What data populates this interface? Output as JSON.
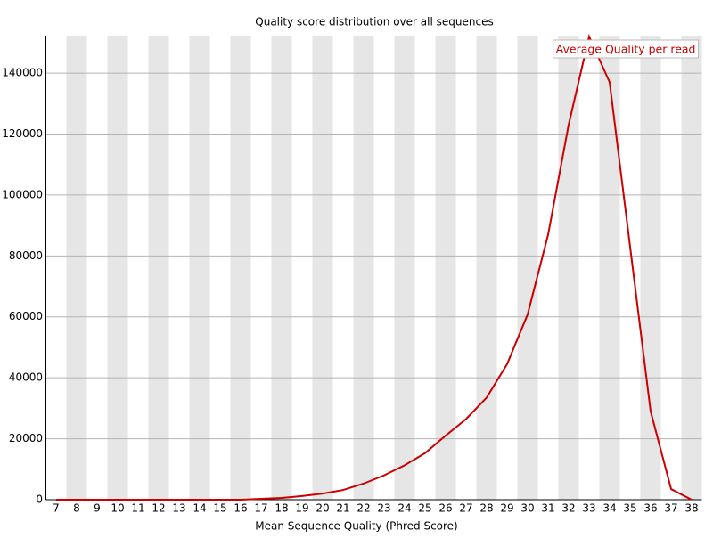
{
  "chart_data": {
    "type": "line",
    "title": "Quality score distribution over all sequences",
    "xlabel": "Mean Sequence Quality (Phred Score)",
    "categories": [
      7,
      8,
      9,
      10,
      11,
      12,
      13,
      14,
      15,
      16,
      17,
      18,
      19,
      20,
      21,
      22,
      23,
      24,
      25,
      26,
      27,
      28,
      29,
      30,
      31,
      32,
      33,
      34,
      35,
      36,
      37,
      38
    ],
    "series": [
      {
        "name": "Average Quality per read",
        "color": "#cc0000",
        "values": [
          0,
          0,
          0,
          0,
          0,
          0,
          0,
          0,
          0,
          0,
          300,
          600,
          1200,
          2000,
          3200,
          5300,
          8000,
          11300,
          15300,
          21000,
          26500,
          33500,
          44500,
          60800,
          87000,
          123000,
          152000,
          137000,
          83000,
          29000,
          3500,
          0
        ]
      }
    ],
    "ylim": [
      0,
      152300
    ],
    "yticks": [
      0,
      20000,
      40000,
      60000,
      80000,
      100000,
      120000,
      140000
    ],
    "grid": true,
    "legend": "top-right"
  }
}
